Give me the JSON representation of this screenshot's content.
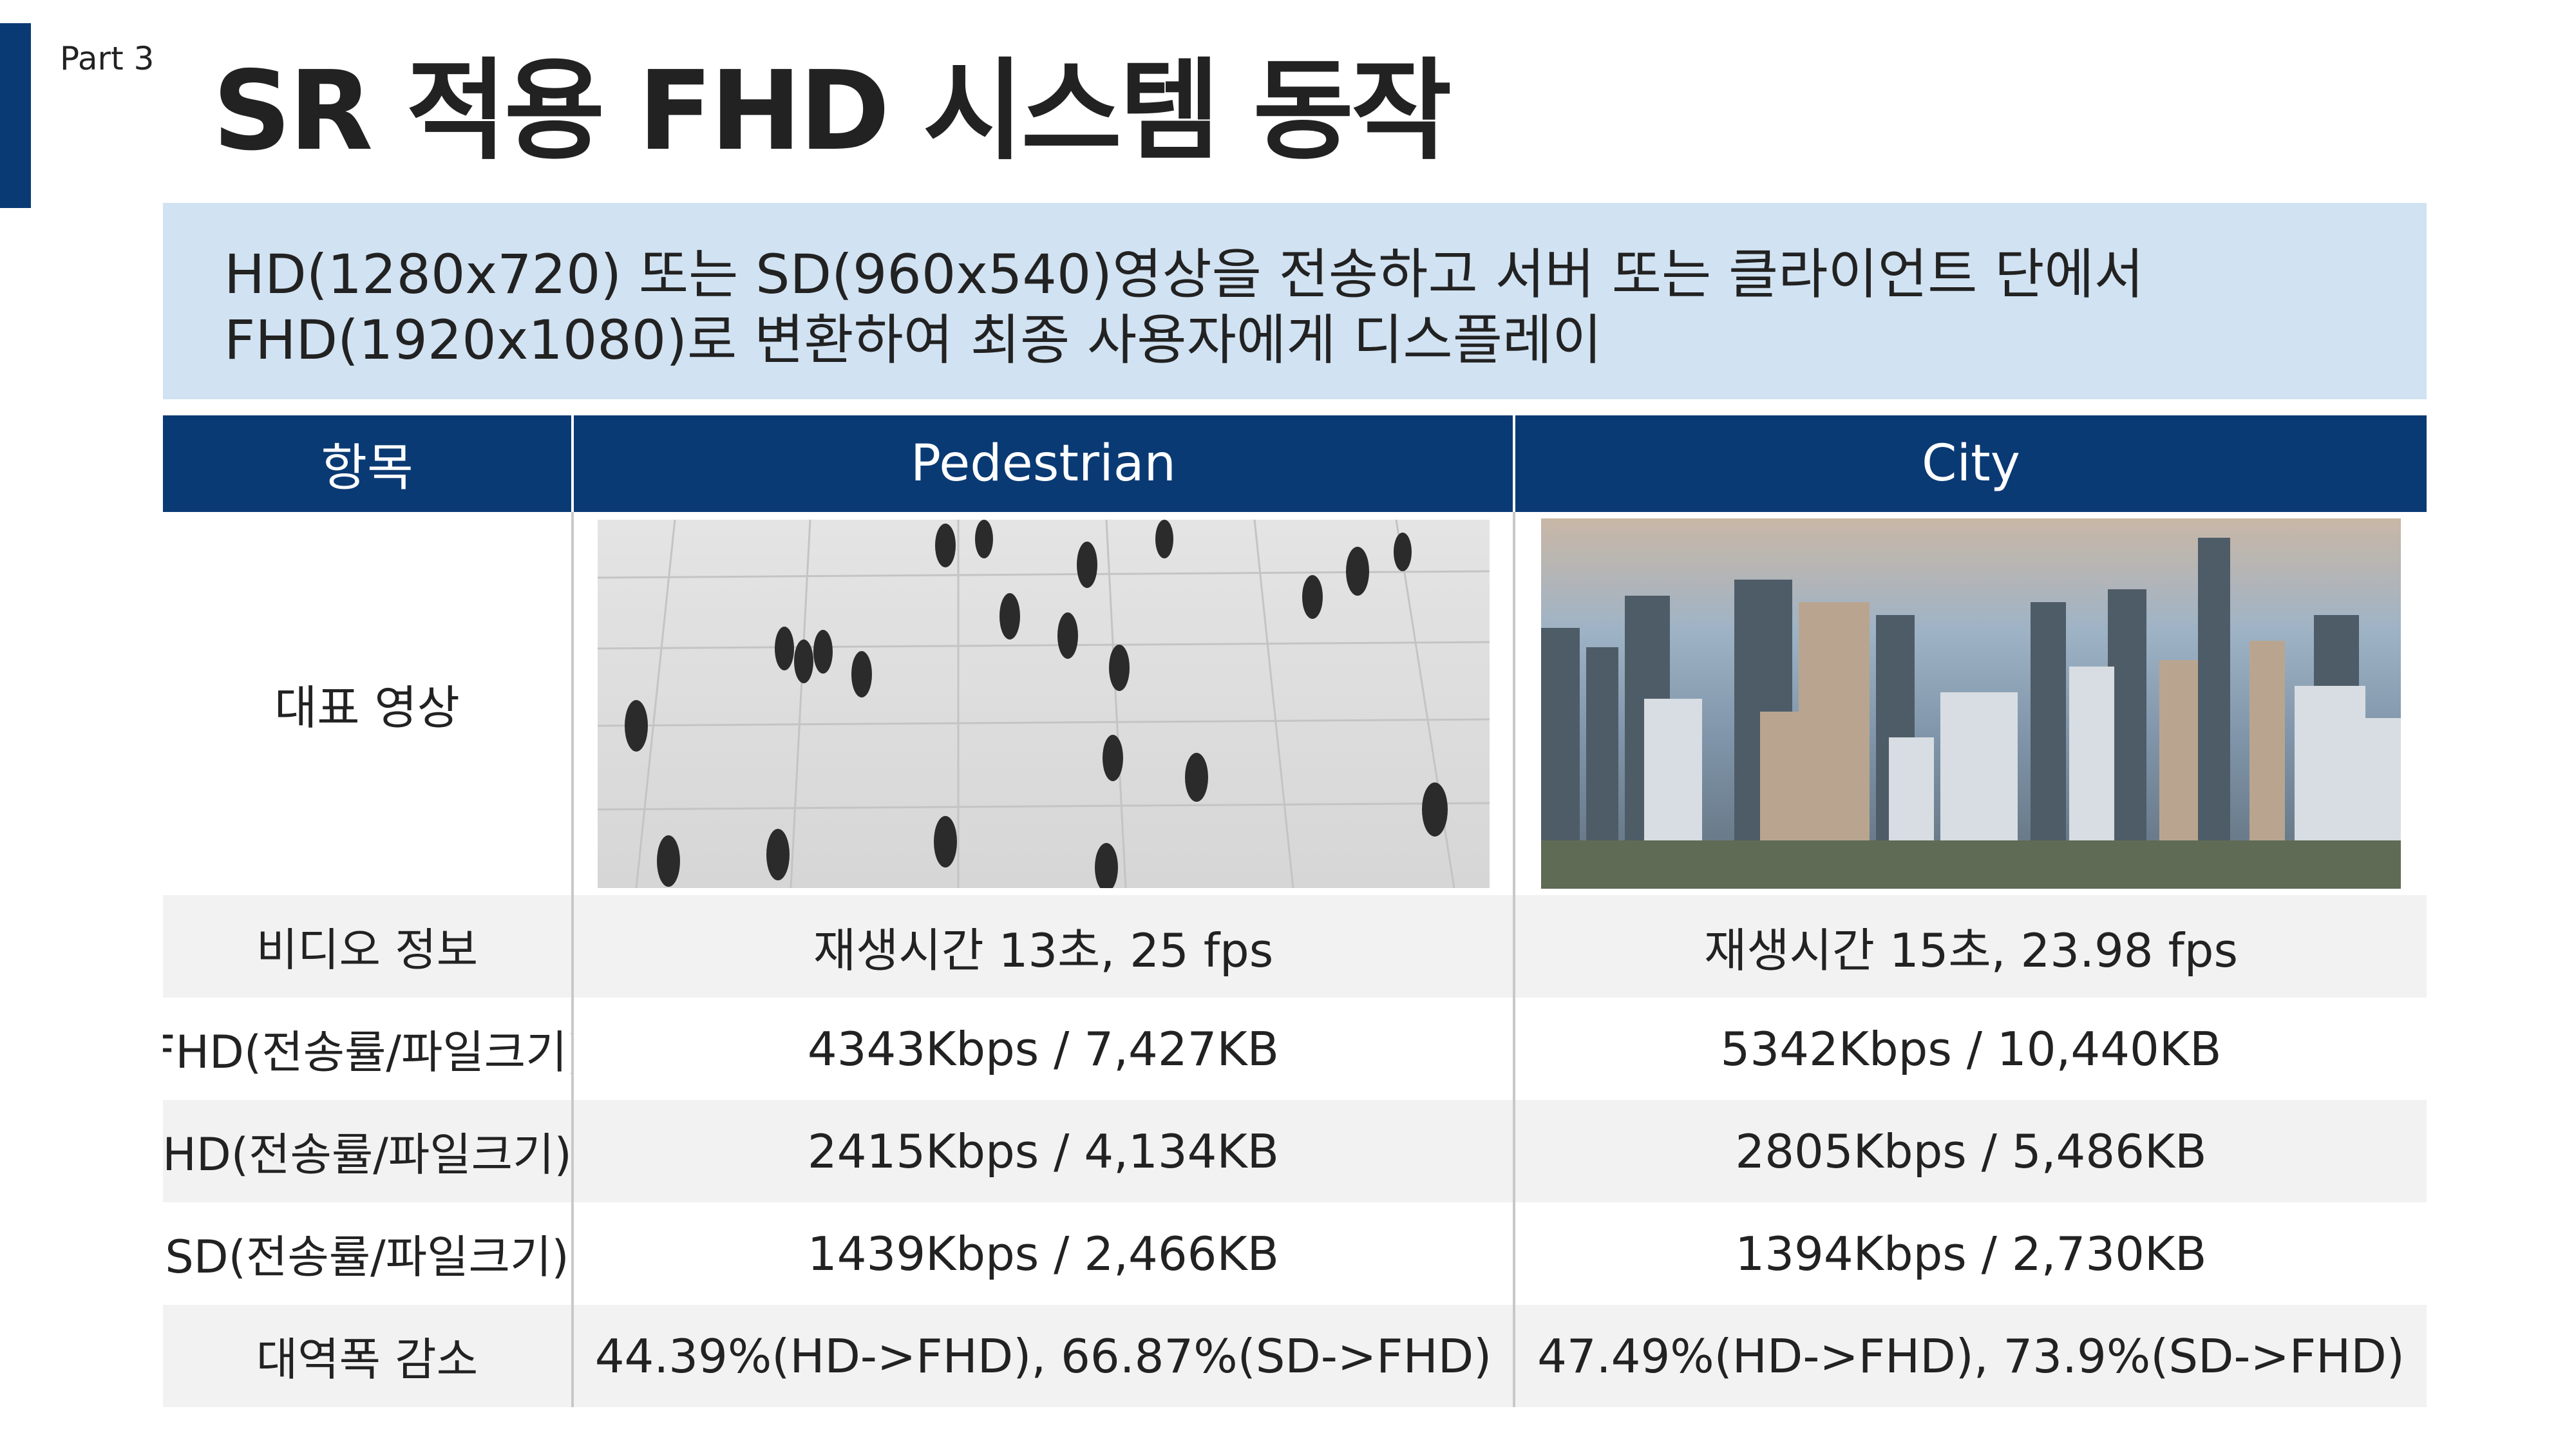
{
  "header": {
    "part_label": "Part 3",
    "title": "SR 적용 FHD 시스템 동작"
  },
  "summary": {
    "line1": "HD(1280x720) 또는 SD(960x540)영상을 전송하고 서버 또는 클라이언트 단에서",
    "line2": "FHD(1920x1080)로 변환하여 최종 사용자에게 디스플레이"
  },
  "table": {
    "columns": [
      "항목",
      "Pedestrian",
      "City"
    ],
    "image_row_label": "대표 영상",
    "rows": [
      {
        "label": "비디오 정보",
        "pedestrian": "재생시간 13초, 25 fps",
        "city": "재생시간 15초, 23.98 fps"
      },
      {
        "label": "FHD(전송률/파일크기)",
        "pedestrian": "4343Kbps / 7,427KB",
        "city": "5342Kbps / 10,440KB"
      },
      {
        "label": "HD(전송률/파일크기)",
        "pedestrian": "2415Kbps / 4,134KB",
        "city": "2805Kbps / 5,486KB"
      },
      {
        "label": "SD(전송률/파일크기)",
        "pedestrian": "1439Kbps / 2,466KB",
        "city": "1394Kbps / 2,730KB"
      },
      {
        "label": "대역폭 감소",
        "pedestrian": "44.39%(HD->FHD), 66.87%(SD->FHD)",
        "city": "47.49%(HD->FHD), 73.9%(SD->FHD)"
      }
    ]
  },
  "colors": {
    "accent": "#0a3a74",
    "summary_bg": "#d1e2f2",
    "row_shade": "#f2f2f2"
  }
}
